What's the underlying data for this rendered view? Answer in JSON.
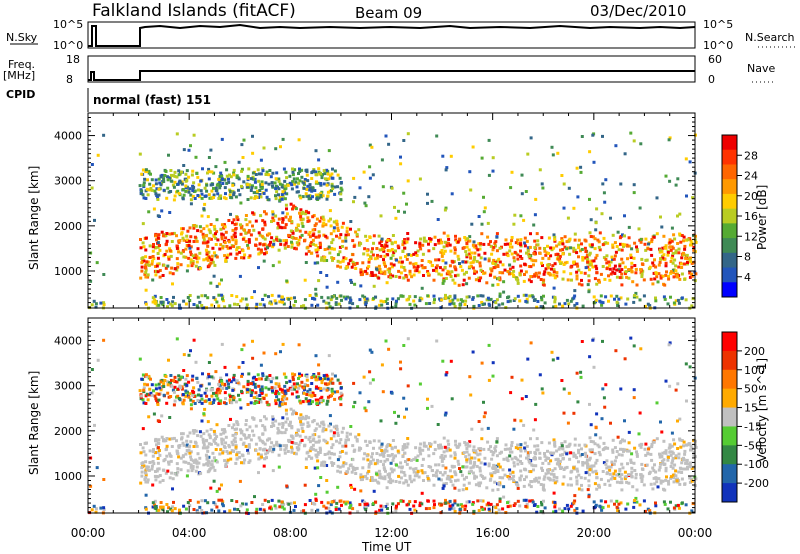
{
  "header": {
    "station": "Falkland Islands (fitACF)",
    "beam": "Beam 09",
    "date": "03/Dec/2010"
  },
  "top_panels": {
    "nsky_label": "N.Sky",
    "nsky_ticks": [
      "10^5",
      "10^0"
    ],
    "nsearch_label": "N.Search",
    "nsearch_ticks": [
      "10^5",
      "10^0"
    ],
    "freq_label": "Freq.",
    "freq_unit": "[MHz]",
    "freq_ticks": [
      "18",
      "8"
    ],
    "nave_label": "Nave",
    "nave_ticks": [
      "60",
      "0"
    ],
    "cpid_label": "CPID",
    "cpid_value": "normal (fast) 151"
  },
  "chart_data": [
    {
      "type": "heatmap",
      "name": "power",
      "ylabel": "Slant Range [km]",
      "xlabel": "Time UT",
      "x_ticks": [
        "00:00",
        "04:00",
        "08:00",
        "12:00",
        "16:00",
        "20:00",
        "00:00"
      ],
      "xlim_hours": [
        0,
        24
      ],
      "y_ticks": [
        1000,
        2000,
        3000,
        4000
      ],
      "ylim": [
        180,
        4500
      ],
      "colorbar_label": "Power [dB]",
      "colorbar_ticks": [
        "28",
        "24",
        "20",
        "16",
        "12",
        "8",
        "4"
      ],
      "colorbar_colors": [
        "#0000ff",
        "#2255bb",
        "#336688",
        "#3f8a55",
        "#55aa33",
        "#b9cc22",
        "#ffcc00",
        "#ff9900",
        "#ff6600",
        "#ff3300",
        "#ee0000"
      ]
    },
    {
      "type": "heatmap",
      "name": "velocity",
      "ylabel": "Slant Range [km]",
      "xlabel": "Time UT",
      "x_ticks": [
        "00:00",
        "04:00",
        "08:00",
        "12:00",
        "16:00",
        "20:00",
        "00:00"
      ],
      "xlim_hours": [
        0,
        24
      ],
      "y_ticks": [
        1000,
        2000,
        3000,
        4000
      ],
      "ylim": [
        180,
        4500
      ],
      "colorbar_label": "Velocity [m s^-1]",
      "colorbar_ticks": [
        "200",
        "100",
        "50",
        "15",
        "-15",
        "-50",
        "-100",
        "-200"
      ],
      "colorbar_colors": [
        "#1133bb",
        "#2266aa",
        "#338844",
        "#55cc33",
        "#c0c0c0",
        "#ffaa00",
        "#ff7700",
        "#ee3300",
        "#ff0000"
      ]
    }
  ]
}
